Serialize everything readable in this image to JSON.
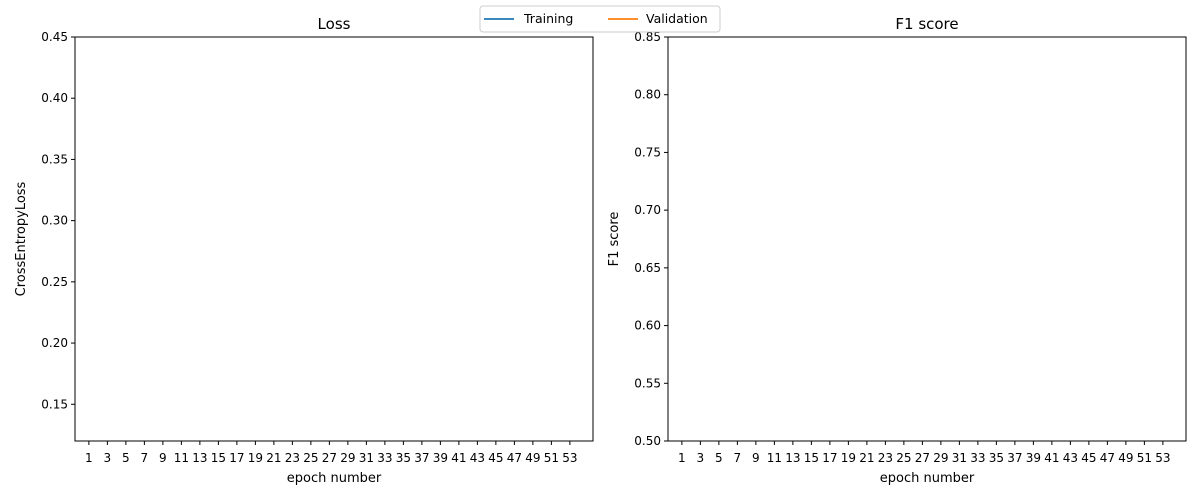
{
  "colors": {
    "training": "#1f77b4",
    "validation": "#ff7f0e",
    "axis": "#000000"
  },
  "legend": {
    "placement": "top-center",
    "entries": [
      "Training",
      "Validation"
    ]
  },
  "chart_data": [
    {
      "type": "line",
      "title": "Loss",
      "xlabel": "epoch number",
      "ylabel": "CrossEntropyLoss",
      "ylim": [
        0.12,
        0.45
      ],
      "xlim": [
        -0.5,
        55.5
      ],
      "yticks": [
        0.15,
        0.2,
        0.25,
        0.3,
        0.35,
        0.4,
        0.45
      ],
      "ytick_labels": [
        "0.15",
        "0.20",
        "0.25",
        "0.30",
        "0.35",
        "0.40",
        "0.45"
      ],
      "xticks": [
        1,
        3,
        5,
        7,
        9,
        11,
        13,
        15,
        17,
        19,
        21,
        23,
        25,
        27,
        29,
        31,
        33,
        35,
        37,
        39,
        41,
        43,
        45,
        47,
        49,
        51,
        53
      ],
      "xtick_labels": [
        "1",
        "3",
        "5",
        "7",
        "9",
        "11",
        "13",
        "15",
        "17",
        "19",
        "21",
        "23",
        "25",
        "27",
        "29",
        "31",
        "33",
        "35",
        "37",
        "39",
        "41",
        "43",
        "45",
        "47",
        "49",
        "51",
        "53"
      ],
      "series": [
        {
          "name": "Training",
          "x": [],
          "values": []
        },
        {
          "name": "Validation",
          "x": [],
          "values": []
        }
      ]
    },
    {
      "type": "line",
      "title": "F1 score",
      "xlabel": "epoch number",
      "ylabel": "F1 score",
      "ylim": [
        0.5,
        0.85
      ],
      "xlim": [
        -0.5,
        55.5
      ],
      "yticks": [
        0.5,
        0.55,
        0.6,
        0.65,
        0.7,
        0.75,
        0.8,
        0.85
      ],
      "ytick_labels": [
        "0.50",
        "0.55",
        "0.60",
        "0.65",
        "0.70",
        "0.75",
        "0.80",
        "0.85"
      ],
      "xticks": [
        1,
        3,
        5,
        7,
        9,
        11,
        13,
        15,
        17,
        19,
        21,
        23,
        25,
        27,
        29,
        31,
        33,
        35,
        37,
        39,
        41,
        43,
        45,
        47,
        49,
        51,
        53
      ],
      "xtick_labels": [
        "1",
        "3",
        "5",
        "7",
        "9",
        "11",
        "13",
        "15",
        "17",
        "19",
        "21",
        "23",
        "25",
        "27",
        "29",
        "31",
        "33",
        "35",
        "37",
        "39",
        "41",
        "43",
        "45",
        "47",
        "49",
        "51",
        "53"
      ],
      "series": [
        {
          "name": "Training",
          "x": [],
          "values": []
        },
        {
          "name": "Validation",
          "x": [],
          "values": []
        }
      ]
    }
  ]
}
